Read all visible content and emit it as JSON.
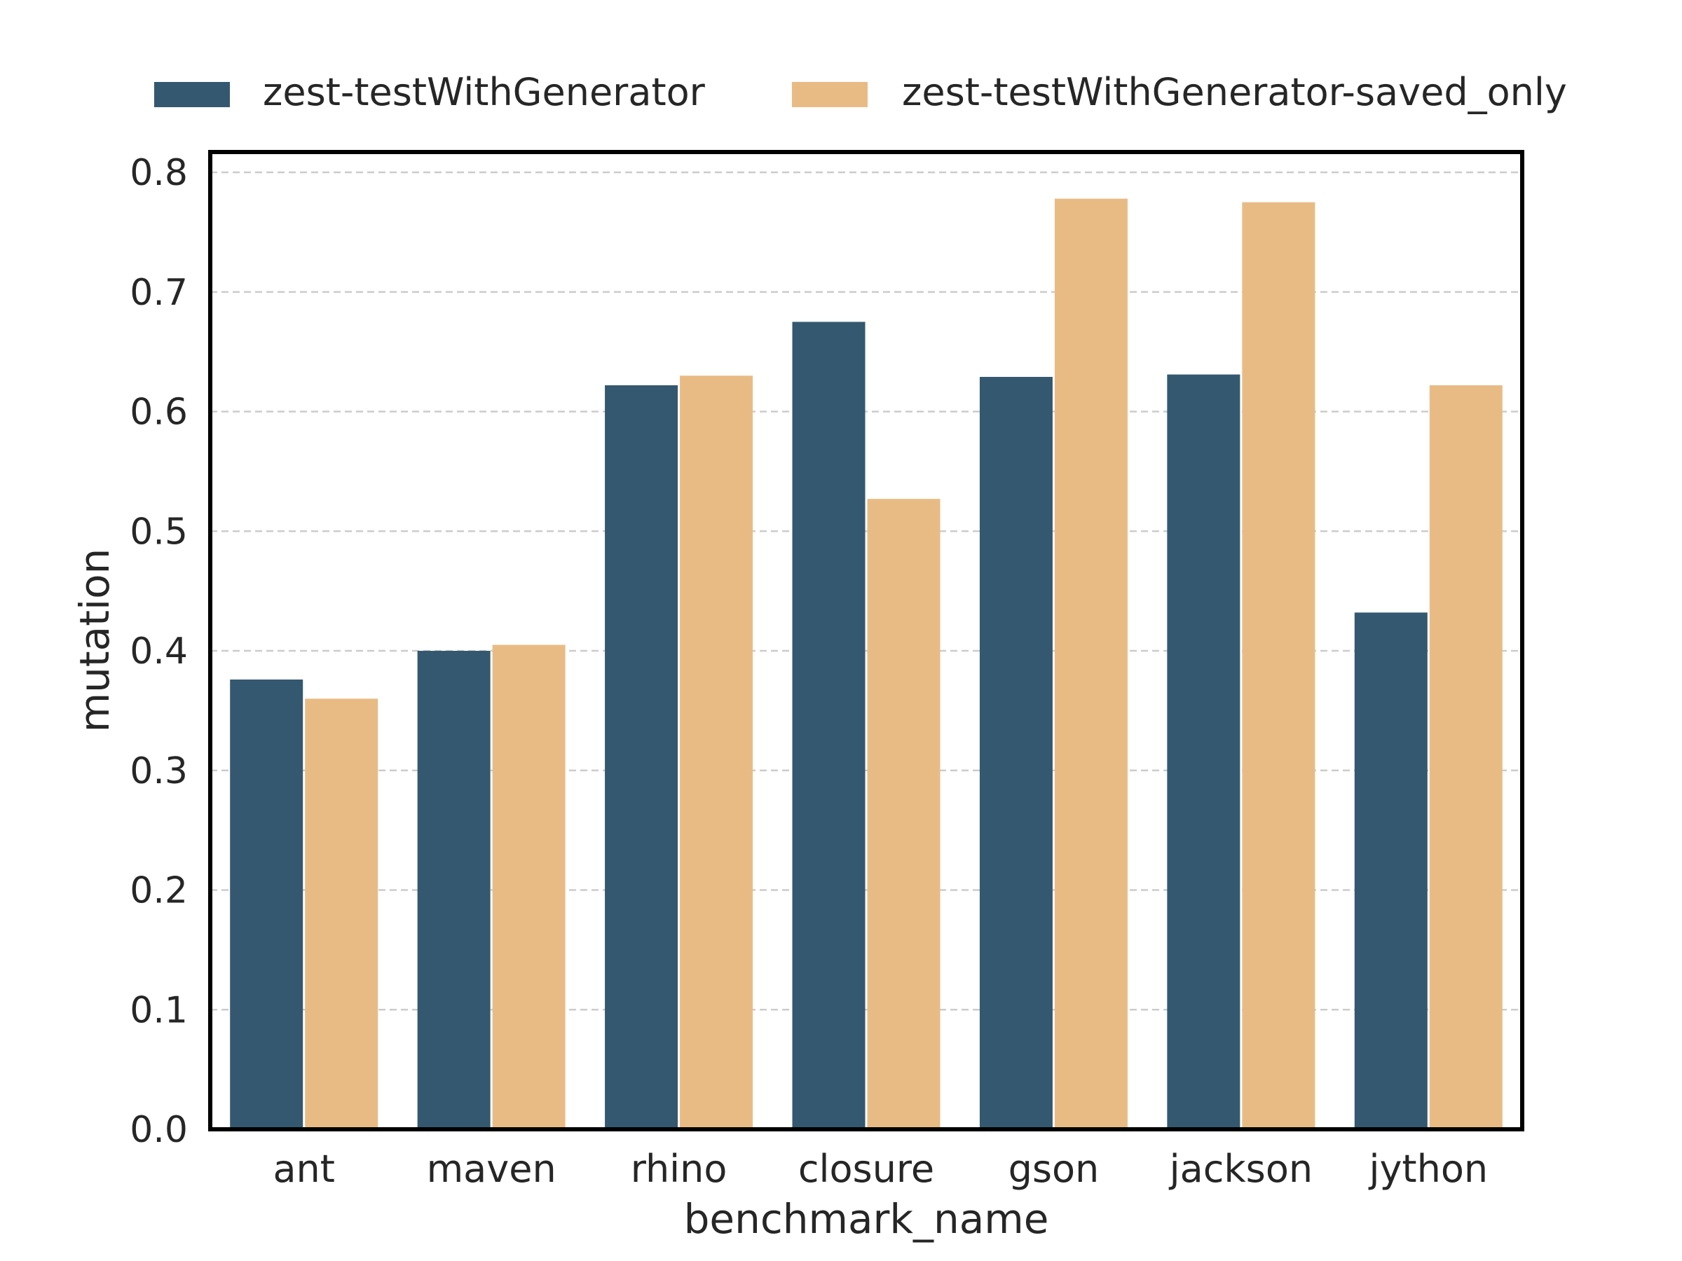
{
  "chart_data": {
    "type": "bar",
    "xlabel": "benchmark_name",
    "ylabel": "mutation",
    "categories": [
      "ant",
      "maven",
      "rhino",
      "closure",
      "gson",
      "jackson",
      "jython"
    ],
    "series": [
      {
        "name": "zest-testWithGenerator",
        "color": "#34586f",
        "values": [
          0.376,
          0.4,
          0.622,
          0.675,
          0.629,
          0.631,
          0.432
        ]
      },
      {
        "name": "zest-testWithGenerator-saved_only",
        "color": "#e9bb84",
        "values": [
          0.36,
          0.405,
          0.63,
          0.527,
          0.778,
          0.775,
          0.622
        ]
      }
    ],
    "ylim": [
      0,
      0.8
    ],
    "yticks": [
      "0.0",
      "0.1",
      "0.2",
      "0.3",
      "0.4",
      "0.5",
      "0.6",
      "0.7",
      "0.8"
    ],
    "grid": "horizontal-dashed",
    "legend_position": "top"
  }
}
